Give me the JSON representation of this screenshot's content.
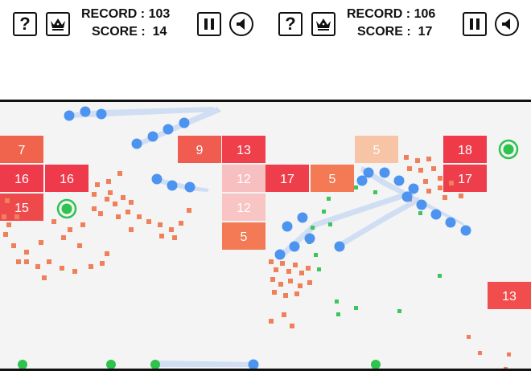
{
  "left": {
    "record_label": "RECORD :",
    "record_value": "103",
    "score_label": "SCORE :",
    "score_value": "14",
    "help_label": "?",
    "blocks": [
      {
        "value": "7",
        "color": "#f0644e"
      },
      {
        "value": "16",
        "color": "#ee3a4a"
      },
      {
        "value": "16",
        "color": "#ee3a4a"
      },
      {
        "value": "15",
        "color": "#ee4a4c"
      },
      {
        "value": "9",
        "color": "#f05c50"
      },
      {
        "value": "13",
        "color": "#ef3f4b"
      },
      {
        "value": "12",
        "color": "#f8bfc0"
      },
      {
        "value": "12",
        "color": "#f8c4c4"
      },
      {
        "value": "5",
        "color": "#f37a55"
      }
    ]
  },
  "right": {
    "record_label": "RECORD :",
    "record_value": "106",
    "score_label": "SCORE :",
    "score_value": "17",
    "help_label": "?",
    "blocks": [
      {
        "value": "5",
        "color": "#f7c4a6"
      },
      {
        "value": "18",
        "color": "#ef3a4a"
      },
      {
        "value": "17",
        "color": "#ee3e4b"
      },
      {
        "value": "17",
        "color": "#ee3e4b"
      },
      {
        "value": "5",
        "color": "#f37a55"
      },
      {
        "value": "13",
        "color": "#f24d4d"
      }
    ]
  },
  "colors": {
    "ball": "#4d94f0",
    "power_ring": "#2ec24e",
    "particle_orange": "#f0805a",
    "particle_green": "#3ec45c",
    "field_bg": "#f4f4f4"
  },
  "icons": [
    "help-icon",
    "crown-icon",
    "pause-icon",
    "sound-icon"
  ]
}
